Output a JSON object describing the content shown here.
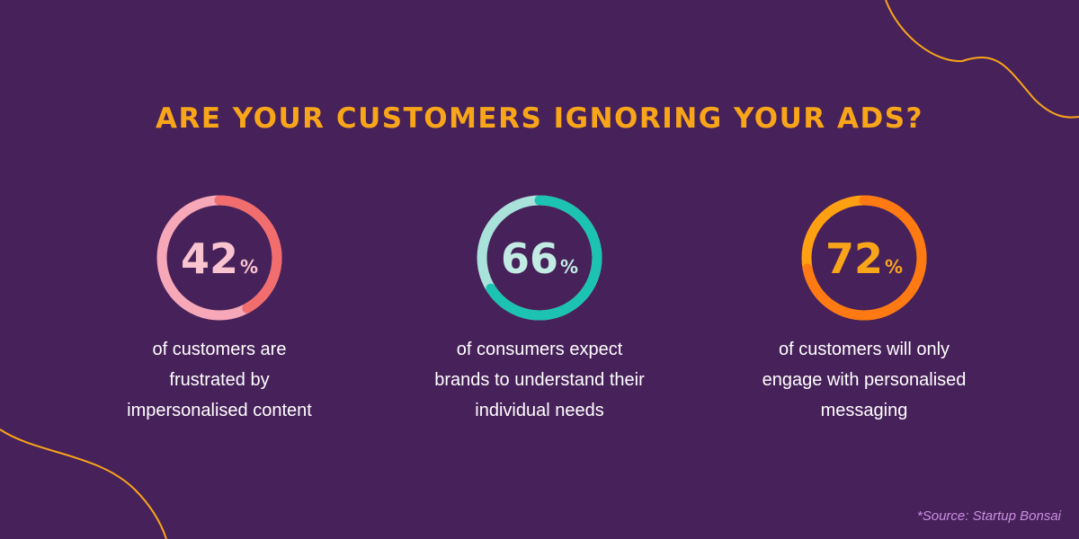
{
  "title": "ARE YOUR CUSTOMERS IGNORING YOUR ADS?",
  "stats": [
    {
      "value": 42,
      "unit": "%",
      "color": "#f26d6d",
      "track": "#f7a8b8",
      "number_color": "#f9c3cf",
      "lines": [
        "of customers are",
        "frustrated by",
        "impersonalised content"
      ]
    },
    {
      "value": 66,
      "unit": "%",
      "color": "#1cc3b2",
      "track": "#a9e2da",
      "number_color": "#c2ebe4",
      "lines": [
        "of consumers expect",
        "brands to understand their",
        "individual needs"
      ]
    },
    {
      "value": 72,
      "unit": "%",
      "color": "#ff7a12",
      "track": "#ffa012",
      "number_color": "#f9a51a",
      "lines": [
        "of customers will only",
        "engage with personalised",
        "messaging"
      ]
    }
  ],
  "source": "*Source: Startup Bonsai"
}
